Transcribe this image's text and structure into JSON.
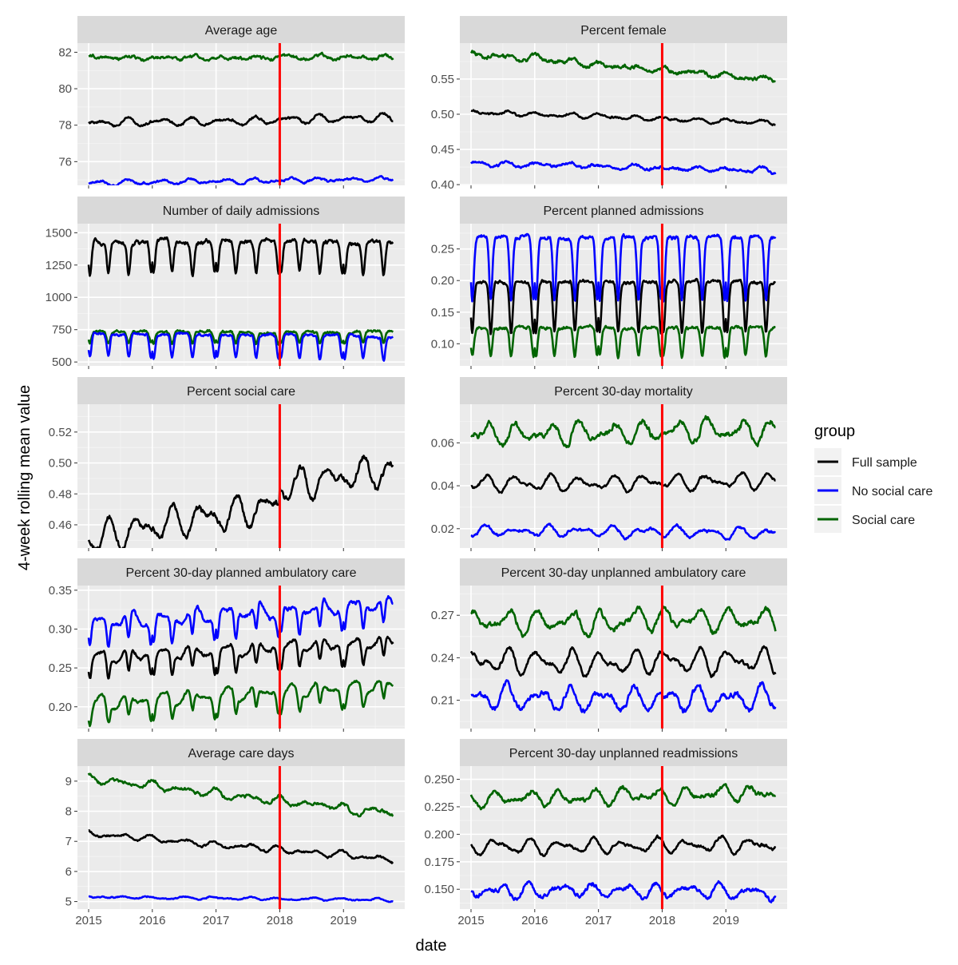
{
  "chart_data": {
    "type": "line",
    "xlabel": "date",
    "ylabel": "4-week rolling mean value",
    "legend": {
      "title": "group",
      "placement": "right",
      "entries": [
        "Full sample",
        "No social care",
        "Social care"
      ]
    },
    "colors": {
      "Full sample": "#000000",
      "No social care": "#0000ff",
      "Social care": "#006400",
      "vline": "#ff0000"
    },
    "x_ticks": [
      "2015",
      "2016",
      "2017",
      "2018",
      "2019"
    ],
    "xlim": [
      "2015-01-01",
      "2019-10-15"
    ],
    "reference_line": "2018-01-01",
    "panels": [
      {
        "title": "Average age",
        "ylim": [
          74.7,
          82.5
        ],
        "y_ticks": [
          "76",
          "78",
          "80",
          "82"
        ],
        "series": [
          {
            "name": "Social care",
            "base": 81.7,
            "amp": 0.12,
            "trend": 0.0,
            "noise": 0.12
          },
          {
            "name": "Full sample",
            "base": 78.1,
            "amp": 0.25,
            "trend": 0.3,
            "noise": 0.1
          },
          {
            "name": "No social care",
            "base": 74.8,
            "amp": 0.15,
            "trend": 0.25,
            "noise": 0.08
          }
        ]
      },
      {
        "title": "Percent female",
        "ylim": [
          0.399,
          0.601
        ],
        "y_ticks": [
          "0.40",
          "0.45",
          "0.50",
          "0.55"
        ],
        "series": [
          {
            "name": "Social care",
            "base": 0.585,
            "amp": 0.004,
            "trend": -0.035,
            "noise": 0.004
          },
          {
            "name": "Full sample",
            "base": 0.503,
            "amp": 0.004,
            "trend": -0.015,
            "noise": 0.002
          },
          {
            "name": "No social care",
            "base": 0.43,
            "amp": 0.004,
            "trend": -0.01,
            "noise": 0.003
          }
        ]
      },
      {
        "title": "Number of daily admissions",
        "ylim": [
          470,
          1570
        ],
        "y_ticks": [
          "500",
          "750",
          "1000",
          "1250",
          "1500"
        ],
        "series": [
          {
            "name": "Full sample",
            "base": 1440,
            "amp": 0,
            "trend": -20,
            "noise": 25,
            "dips": {
              "depth": 250
            }
          },
          {
            "name": "Social care",
            "base": 735,
            "amp": 0,
            "trend": 0,
            "noise": 15,
            "dips": {
              "depth": 90
            }
          },
          {
            "name": "No social care",
            "base": 720,
            "amp": 0,
            "trend": -20,
            "noise": 15,
            "dips": {
              "depth": 180
            }
          }
        ]
      },
      {
        "title": "Percent planned admissions",
        "ylim": [
          0.065,
          0.29
        ],
        "y_ticks": [
          "0.10",
          "0.15",
          "0.20",
          "0.25"
        ],
        "series": [
          {
            "name": "No social care",
            "base": 0.268,
            "amp": 0,
            "trend": 0.0,
            "noise": 0.005,
            "dips": {
              "depth": 0.1
            }
          },
          {
            "name": "Full sample",
            "base": 0.198,
            "amp": 0,
            "trend": 0.0,
            "noise": 0.004,
            "dips": {
              "depth": 0.08
            }
          },
          {
            "name": "Social care",
            "base": 0.125,
            "amp": 0,
            "trend": 0.0,
            "noise": 0.004,
            "dips": {
              "depth": 0.045
            }
          }
        ]
      },
      {
        "title": "Percent social care",
        "ylim": [
          0.445,
          0.538
        ],
        "y_ticks": [
          "0.46",
          "0.48",
          "0.50",
          "0.52"
        ],
        "series": [
          {
            "name": "Full sample",
            "base": 0.452,
            "amp": 0.012,
            "trend": 0.032,
            "noise": 0.003,
            "jump": 0.012
          }
        ]
      },
      {
        "title": "Percent 30-day mortality",
        "ylim": [
          0.011,
          0.078
        ],
        "y_ticks": [
          "0.02",
          "0.04",
          "0.06"
        ],
        "series": [
          {
            "name": "Social care",
            "base": 0.064,
            "amp": 0.006,
            "trend": 0.002,
            "noise": 0.002
          },
          {
            "name": "Full sample",
            "base": 0.041,
            "amp": 0.004,
            "trend": 0.001,
            "noise": 0.001
          },
          {
            "name": "No social care",
            "base": 0.019,
            "amp": 0.003,
            "trend": -0.001,
            "noise": 0.001
          }
        ]
      },
      {
        "title": "Percent 30-day planned ambulatory care",
        "ylim": [
          0.172,
          0.356
        ],
        "y_ticks": [
          "0.20",
          "0.25",
          "0.30",
          "0.35"
        ],
        "series": [
          {
            "name": "No social care",
            "base": 0.31,
            "amp": 0.012,
            "trend": 0.025,
            "noise": 0.004,
            "dips": {
              "depth": 0.035
            }
          },
          {
            "name": "Full sample",
            "base": 0.265,
            "amp": 0.01,
            "trend": 0.02,
            "noise": 0.003,
            "dips": {
              "depth": 0.03
            }
          },
          {
            "name": "Social care",
            "base": 0.205,
            "amp": 0.01,
            "trend": 0.025,
            "noise": 0.003,
            "dips": {
              "depth": 0.025
            }
          }
        ]
      },
      {
        "title": "Percent 30-day unplanned ambulatory care",
        "ylim": [
          0.19,
          0.291
        ],
        "y_ticks": [
          "0.21",
          "0.24",
          "0.27"
        ],
        "series": [
          {
            "name": "Social care",
            "base": 0.264,
            "amp": 0.01,
            "trend": 0.004,
            "noise": 0.003
          },
          {
            "name": "Full sample",
            "base": 0.237,
            "amp": 0.01,
            "trend": 0.0,
            "noise": 0.002
          },
          {
            "name": "No social care",
            "base": 0.211,
            "amp": 0.01,
            "trend": 0.0,
            "noise": 0.003
          }
        ]
      },
      {
        "title": "Average care days",
        "ylim": [
          4.75,
          9.5
        ],
        "y_ticks": [
          "5",
          "6",
          "7",
          "8",
          "9"
        ],
        "series": [
          {
            "name": "Social care",
            "base": 9.1,
            "amp": 0.15,
            "trend": -1.2,
            "noise": 0.08
          },
          {
            "name": "Full sample",
            "base": 7.25,
            "amp": 0.12,
            "trend": -0.85,
            "noise": 0.05
          },
          {
            "name": "No social care",
            "base": 5.15,
            "amp": 0.05,
            "trend": -0.1,
            "noise": 0.03
          }
        ]
      },
      {
        "title": "Percent 30-day unplanned readmissions",
        "ylim": [
          0.132,
          0.262
        ],
        "y_ticks": [
          "0.150",
          "0.175",
          "0.200",
          "0.225",
          "0.250"
        ],
        "series": [
          {
            "name": "Social care",
            "base": 0.232,
            "amp": 0.008,
            "trend": 0.006,
            "noise": 0.003
          },
          {
            "name": "Full sample",
            "base": 0.188,
            "amp": 0.008,
            "trend": 0.003,
            "noise": 0.002
          },
          {
            "name": "No social care",
            "base": 0.149,
            "amp": 0.008,
            "trend": -0.001,
            "noise": 0.003
          }
        ]
      }
    ]
  }
}
